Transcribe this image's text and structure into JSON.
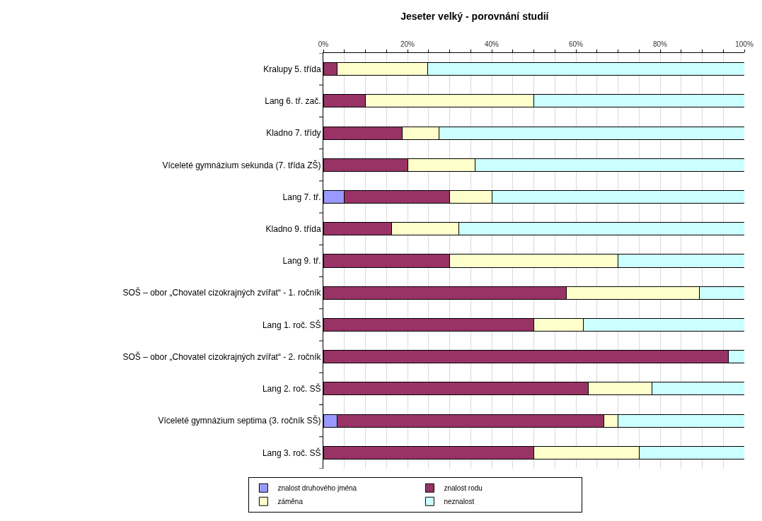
{
  "chart_data": {
    "type": "bar",
    "orientation": "horizontal",
    "stacked": true,
    "title": "Jeseter velký - porovnání studií",
    "categories": [
      "Kralupy 5. třída",
      "Lang 6. tř. zač.",
      "Kladno 7. třídy",
      "Víceleté gymnázium sekunda (7. třída ZŠ)",
      "Lang 7. tř.",
      "Kladno 9. třída",
      "Lang 9. tř.",
      "SOŠ – obor „Chovatel cizokrajných zvířat“ - 1. ročník",
      "Lang 1. roč. SŠ",
      "SOŠ – obor „Chovatel cizokrajných zvířat“ - 2. ročník",
      "Lang 2. roč. SŠ",
      "Víceleté gymnázium septima (3. ročník SŠ)",
      "Lang 3. roč. SŠ"
    ],
    "series": [
      {
        "name": "znalost druhového jména",
        "color": "#9999ff",
        "values": [
          0,
          0,
          0,
          0,
          5,
          0,
          0,
          0,
          0,
          0,
          0,
          3.2,
          0
        ]
      },
      {
        "name": "znalost rodu",
        "color": "#993366",
        "values": [
          3.2,
          10,
          18.8,
          20,
          25,
          16.2,
          30,
          57.8,
          50,
          96.2,
          62.9,
          63.5,
          50
        ]
      },
      {
        "name": "záměna",
        "color": "#ffffcc",
        "values": [
          21.6,
          40,
          8.7,
          16,
          10,
          16,
          40,
          31.6,
          11.8,
          0,
          15.2,
          3.3,
          25
        ]
      },
      {
        "name": "neznalost",
        "color": "#ccffff",
        "values": [
          75.2,
          50,
          72.5,
          64,
          60,
          67.8,
          30,
          10.6,
          38.2,
          3.8,
          21.9,
          30,
          25
        ]
      }
    ],
    "xlim": [
      0,
      100
    ],
    "xticks": [
      {
        "value": 0,
        "label": "0%"
      },
      {
        "value": 5,
        "label": null
      },
      {
        "value": 10,
        "label": null
      },
      {
        "value": 15,
        "label": null
      },
      {
        "value": 20,
        "label": "20%"
      },
      {
        "value": 25,
        "label": null
      },
      {
        "value": 30,
        "label": null
      },
      {
        "value": 35,
        "label": null
      },
      {
        "value": 40,
        "label": "40%"
      },
      {
        "value": 45,
        "label": null
      },
      {
        "value": 50,
        "label": null
      },
      {
        "value": 55,
        "label": null
      },
      {
        "value": 60,
        "label": "60%"
      },
      {
        "value": 65,
        "label": null
      },
      {
        "value": 70,
        "label": null
      },
      {
        "value": 75,
        "label": null
      },
      {
        "value": 80,
        "label": "80%"
      },
      {
        "value": 85,
        "label": null
      },
      {
        "value": 90,
        "label": null
      },
      {
        "value": 95,
        "label": null
      },
      {
        "value": 100,
        "label": "100%"
      }
    ],
    "grid": "x",
    "legend": "bottom"
  }
}
